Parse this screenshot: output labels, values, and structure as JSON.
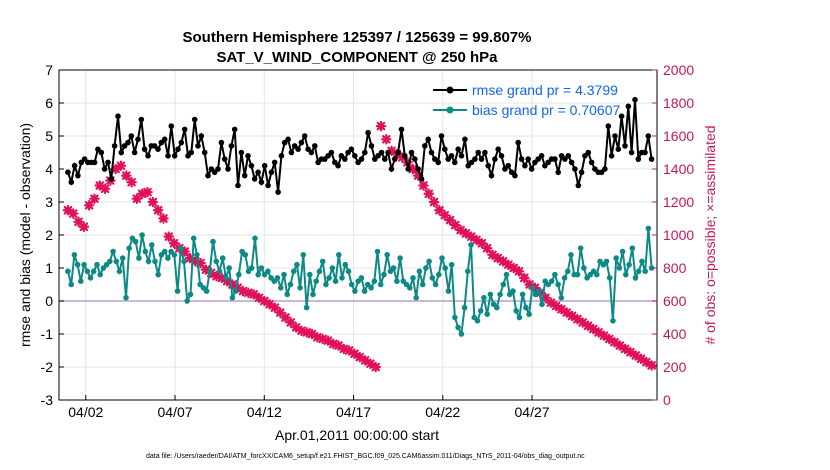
{
  "chart_data": {
    "type": "line",
    "title": "Southern Hemisphere 125397 / 125639 = 99.807%",
    "subtitle": "SAT_V_WIND_COMPONENT @ 250 hPa",
    "xlabel": "Apr.01,2011 00:00:00 start",
    "ylabel": "rmse and bias (model - observation)",
    "ylabel_right": "# of obs: o=possible; ×=assimilated",
    "footnote": "data file: /Users/raeder/DAI/ATM_forcXX/CAM6_setup/f.e21.FHIST_BGC.f09_025.CAM6assim.011/Diags_NTrS_2011-04/obs_diag_output.nc",
    "xlim": [
      0.5,
      34.0
    ],
    "ylim": [
      -3,
      7
    ],
    "ylim_right": [
      0,
      2000
    ],
    "x_ticks": [
      2,
      7,
      12,
      17,
      22,
      27
    ],
    "x_tick_labels": [
      "04/02",
      "04/07",
      "04/12",
      "04/17",
      "04/22",
      "04/27"
    ],
    "y_ticks": [
      -3,
      -2,
      -1,
      0,
      1,
      2,
      3,
      4,
      5,
      6,
      7
    ],
    "y_ticks_right": [
      0,
      200,
      400,
      600,
      800,
      1000,
      1200,
      1400,
      1600,
      1800,
      2000
    ],
    "grid": true,
    "legend_position": "top-right",
    "colors": {
      "rmse": "#000000",
      "bias": "#0e8a86",
      "obs": "#e0105a",
      "zero": "#b8a2c8",
      "right_axis": "#c2185b",
      "legend_text": "#1565e6"
    },
    "series": [
      {
        "name": "rmse grand pr = 4.3799",
        "axis": "left",
        "values": [
          3.9,
          3.6,
          4.1,
          3.8,
          4.2,
          4.3,
          4.2,
          4.2,
          4.2,
          4.6,
          4.5,
          4.0,
          4.2,
          3.7,
          4.7,
          5.6,
          4.5,
          4.7,
          4.8,
          5.0,
          4.5,
          4.9,
          5.5,
          4.6,
          4.4,
          4.7,
          4.7,
          4.6,
          4.8,
          4.9,
          4.4,
          5.3,
          4.4,
          4.6,
          4.8,
          5.2,
          4.4,
          4.5,
          5.5,
          4.7,
          5.0,
          4.5,
          3.8,
          4.0,
          3.9,
          4.0,
          4.8,
          4.3,
          4.0,
          4.7,
          5.2,
          3.5,
          4.5,
          3.8,
          4.4,
          4.1,
          3.7,
          3.9,
          3.6,
          4.1,
          3.5,
          3.9,
          4.2,
          3.3,
          4.4,
          4.8,
          4.9,
          4.5,
          4.7,
          4.6,
          4.8,
          5.0,
          4.6,
          4.5,
          4.7,
          4.2,
          4.3,
          4.3,
          4.4,
          4.5,
          4.2,
          4.1,
          4.4,
          4.3,
          4.5,
          4.6,
          4.4,
          4.2,
          4.3,
          4.5,
          5.1,
          4.7,
          4.3,
          4.4,
          4.5,
          4.3,
          4.5,
          4.0,
          4.3,
          4.5,
          5.2,
          4.4,
          4.0,
          4.5,
          4.3,
          4.0,
          3.7,
          4.7,
          4.9,
          4.5,
          4.3,
          4.2,
          5.0,
          4.6,
          4.3,
          4.4,
          4.2,
          4.6,
          4.4,
          4.9,
          4.1,
          4.2,
          4.3,
          4.5,
          4.3,
          4.5,
          4.1,
          3.8,
          4.3,
          4.6,
          4.4,
          4.0,
          4.1,
          3.9,
          3.8,
          4.8,
          4.3,
          4.1,
          4.3,
          4.0,
          4.2,
          4.3,
          4.4,
          4.1,
          4.2,
          4.3,
          4.3,
          3.9,
          4.4,
          4.3,
          4.4,
          4.2,
          4.0,
          3.5,
          3.9,
          4.4,
          4.5,
          4.2,
          4.0,
          3.9,
          3.9,
          4.0,
          5.3,
          4.4,
          5.0,
          4.6,
          5.6,
          4.7,
          5.9,
          4.5,
          6.1,
          4.3,
          4.5,
          4.5,
          5.0,
          4.3
        ]
      },
      {
        "name": "bias grand pr = 0.70607",
        "axis": "left",
        "values": [
          0.9,
          0.5,
          1.4,
          1.1,
          0.6,
          1.1,
          0.9,
          0.7,
          0.9,
          1.1,
          0.8,
          1.0,
          1.1,
          1.2,
          1.5,
          1.2,
          0.9,
          1.3,
          0.1,
          1.6,
          1.9,
          1.8,
          1.3,
          2.0,
          1.5,
          1.2,
          1.7,
          1.2,
          0.8,
          1.4,
          1.5,
          1.3,
          1.5,
          1.4,
          0.3,
          1.6,
          1.2,
          0.0,
          0.2,
          1.9,
          1.4,
          0.5,
          0.4,
          0.3,
          0.9,
          1.8,
          1.2,
          0.9,
          1.3,
          0.7,
          1.0,
          0.1,
          0.3,
          0.8,
          1.5,
          1.4,
          0.9,
          1.0,
          1.9,
          0.8,
          1.0,
          0.8,
          0.9,
          0.7,
          0.6,
          0.7,
          0.4,
          0.8,
          0.2,
          0.5,
          0.9,
          1.1,
          0.4,
          1.4,
          -0.2,
          0.8,
          0.2,
          0.6,
          0.9,
          1.2,
          0.5,
          0.7,
          1.0,
          0.6,
          1.4,
          0.7,
          1.1,
          0.9,
          0.5,
          0.3,
          0.6,
          0.7,
          0.3,
          0.5,
          0.4,
          0.6,
          1.5,
          0.5,
          0.8,
          1.4,
          0.9,
          1.0,
          0.6,
          1.3,
          0.6,
          0.5,
          0.4,
          0.7,
          0.1,
          0.9,
          0.5,
          1.0,
          1.2,
          0.7,
          0.5,
          0.8,
          1.3,
          1.0,
          0.3,
          1.1,
          -0.5,
          -0.8,
          -1.0,
          -0.2,
          0.9,
          1.7,
          -0.5,
          -0.6,
          -0.3,
          0.1,
          -0.4,
          0.2,
          -0.1,
          -0.2,
          0.2,
          0.5,
          0.8,
          0.2,
          0.3,
          -0.3,
          -0.5,
          0.2,
          -0.2,
          -0.4,
          0.4,
          0.2,
          0.3,
          -0.1,
          0.6,
          0.5,
          0.6,
          0.8,
          0.5,
          0.1,
          0.7,
          0.9,
          1.4,
          0.8,
          0.8,
          1.6,
          1.0,
          0.7,
          0.8,
          0.9,
          0.8,
          1.2,
          1.1,
          1.2,
          0.7,
          -0.6,
          1.3,
          1.0,
          1.5,
          0.8,
          1.1,
          1.6,
          0.7,
          0.9,
          1.2,
          0.9,
          2.2,
          1.0
        ]
      },
      {
        "name": "# of obs assimilated",
        "axis": "right",
        "values": [
          1150,
          1120,
          1130,
          1150,
          1080,
          1090,
          1050,
          1020,
          1180,
          1170,
          1220,
          1200,
          1300,
          1380,
          1280,
          1280,
          1330,
          1330,
          1400,
          1500,
          1420,
          1380,
          1360,
          1300,
          1320,
          1250,
          1220,
          1280,
          1250,
          1300,
          1260,
          1210,
          1200,
          1180,
          1150,
          1100,
          1100,
          1040,
          990,
          960,
          950,
          930,
          920,
          910,
          900,
          890,
          860,
          850,
          840,
          830,
          830,
          800,
          790,
          780,
          770,
          760,
          750,
          740,
          740,
          730,
          720,
          700,
          700,
          690,
          680,
          670,
          660,
          650,
          650,
          640,
          640,
          630,
          620,
          610,
          600,
          590,
          580,
          570,
          560,
          540,
          530,
          520,
          500,
          490,
          470,
          460,
          440,
          430,
          420,
          410,
          410,
          400,
          400,
          390,
          380,
          380,
          370,
          370,
          360,
          350,
          340,
          340,
          330,
          320,
          310,
          300,
          300,
          290,
          280,
          270,
          260,
          250,
          240,
          230,
          220,
          210,
          200,
          200,
          1660,
          1580,
          1580,
          1540,
          1510,
          1500,
          1490,
          1480,
          1470,
          1460,
          1440,
          1420,
          1400,
          1370,
          1360,
          1340,
          1300,
          1280,
          1250,
          1220,
          1200,
          1180,
          1150,
          1130,
          1120,
          1100,
          1090,
          1070,
          1060,
          1040,
          1030,
          1020,
          1010,
          1000,
          990,
          980,
          970,
          960,
          950,
          940,
          920,
          900,
          880,
          870,
          860,
          850,
          840,
          830,
          820,
          810,
          800,
          790,
          780,
          760,
          740,
          720,
          700,
          690,
          680,
          670,
          650,
          640,
          620,
          600,
          590,
          580,
          570,
          560,
          550,
          540,
          530,
          520,
          510,
          500,
          490,
          480,
          470,
          460,
          450,
          440,
          430,
          420,
          410,
          400,
          390,
          380,
          370,
          360,
          350,
          340,
          330,
          320,
          310,
          300,
          290,
          280,
          270,
          260,
          250,
          240,
          230,
          220,
          210
        ]
      }
    ]
  }
}
